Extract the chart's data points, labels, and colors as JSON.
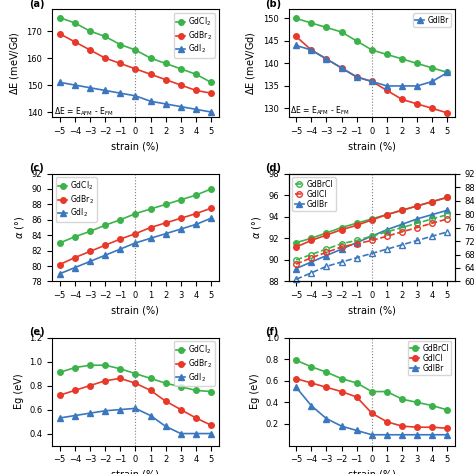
{
  "strain": [
    -5,
    -4,
    -3,
    -2,
    -1,
    0,
    1,
    2,
    3,
    4,
    5
  ],
  "panel_a": {
    "GdCl2": [
      175,
      173,
      170,
      168,
      165,
      163,
      160,
      158,
      156,
      154,
      151
    ],
    "GdBr2": [
      169,
      166,
      163,
      160,
      158,
      156,
      154,
      152,
      150,
      148,
      147
    ],
    "GdI2": [
      151,
      150,
      149,
      148,
      147,
      146,
      144,
      143,
      142,
      141,
      140
    ],
    "ylim": [
      138,
      178
    ],
    "yticks": [
      140,
      150,
      160,
      170
    ]
  },
  "panel_b": {
    "GdBrCl": [
      150,
      149,
      148,
      147,
      145,
      143,
      142,
      141,
      140,
      139,
      138
    ],
    "GdICl": [
      146,
      143,
      141,
      139,
      137,
      136,
      134,
      132,
      131,
      130,
      129
    ],
    "GdIBr": [
      144,
      143,
      141,
      139,
      137,
      136,
      135,
      135,
      135,
      136,
      138
    ],
    "ylim": [
      128,
      152
    ],
    "yticks": [
      130,
      135,
      140,
      145,
      150
    ]
  },
  "panel_c": {
    "GdCl2": [
      83.0,
      83.8,
      84.5,
      85.3,
      86.0,
      86.8,
      87.4,
      88.0,
      88.6,
      89.2,
      90.0
    ],
    "GdBr2": [
      80.2,
      81.1,
      81.9,
      82.7,
      83.5,
      84.2,
      85.0,
      85.6,
      86.2,
      86.8,
      87.5
    ],
    "GdI2": [
      79.0,
      79.8,
      80.6,
      81.4,
      82.2,
      83.0,
      83.6,
      84.2,
      84.8,
      85.4,
      86.2
    ],
    "ylim": [
      78,
      92
    ],
    "yticks": [
      78,
      80,
      82,
      84,
      86,
      88,
      90,
      92
    ]
  },
  "panel_d": {
    "GdBrCl_solid": [
      91.6,
      92.0,
      92.5,
      93.0,
      93.4,
      93.8,
      94.2,
      94.6,
      95.0,
      95.4,
      95.8
    ],
    "GdICl_solid": [
      91.2,
      91.8,
      92.3,
      92.8,
      93.2,
      93.7,
      94.2,
      94.6,
      95.0,
      95.4,
      95.8
    ],
    "GdIBr_solid": [
      89.2,
      89.8,
      90.4,
      91.0,
      91.6,
      92.2,
      92.8,
      93.3,
      93.8,
      94.2,
      94.6
    ],
    "GdBrCl_dashed": [
      90.0,
      90.5,
      91.0,
      91.5,
      91.8,
      92.2,
      92.6,
      93.0,
      93.4,
      93.8,
      94.2
    ],
    "GdICl_dashed": [
      89.6,
      90.2,
      90.7,
      91.2,
      91.5,
      91.8,
      92.2,
      92.6,
      93.0,
      93.4,
      93.8
    ],
    "GdIBr_dashed": [
      88.2,
      88.8,
      89.4,
      89.8,
      90.2,
      90.6,
      91.0,
      91.4,
      91.8,
      92.2,
      92.6
    ],
    "ylim_left": [
      88,
      98
    ],
    "ylim_right": [
      60,
      92
    ],
    "yticks_left": [
      88,
      90,
      92,
      94,
      96,
      98
    ],
    "yticks_right": [
      60,
      64,
      68,
      72,
      76,
      80,
      84,
      88,
      92
    ]
  },
  "panel_e": {
    "GdCl2": [
      0.91,
      0.95,
      0.97,
      0.97,
      0.94,
      0.9,
      0.86,
      0.82,
      0.79,
      0.76,
      0.75
    ],
    "GdBr2": [
      0.72,
      0.76,
      0.8,
      0.84,
      0.86,
      0.82,
      0.76,
      0.67,
      0.6,
      0.53,
      0.47
    ],
    "GdI2": [
      0.53,
      0.55,
      0.57,
      0.59,
      0.6,
      0.61,
      0.55,
      0.46,
      0.4,
      0.4,
      0.4
    ],
    "ylim": [
      0.3,
      1.2
    ],
    "yticks": [
      0.4,
      0.6,
      0.8,
      1.0,
      1.2
    ]
  },
  "panel_f": {
    "GdBrCl": [
      0.79,
      0.73,
      0.68,
      0.62,
      0.58,
      0.5,
      0.5,
      0.43,
      0.4,
      0.37,
      0.33
    ],
    "GdICl": [
      0.62,
      0.58,
      0.54,
      0.5,
      0.45,
      0.3,
      0.22,
      0.18,
      0.17,
      0.17,
      0.16
    ],
    "GdIBr": [
      0.54,
      0.37,
      0.25,
      0.18,
      0.14,
      0.1,
      0.1,
      0.1,
      0.1,
      0.1,
      0.1
    ],
    "ylim": [
      0.0,
      1.0
    ],
    "yticks": [
      0.2,
      0.4,
      0.6,
      0.8,
      1.0
    ]
  },
  "colors": {
    "green": "#3cb34a",
    "red": "#e8382a",
    "blue": "#3b77be"
  },
  "marker_size": 4,
  "linewidth": 1.2,
  "fontsize_label": 7,
  "fontsize_tick": 6,
  "fontsize_legend": 5.5,
  "fontsize_annot": 5.5
}
